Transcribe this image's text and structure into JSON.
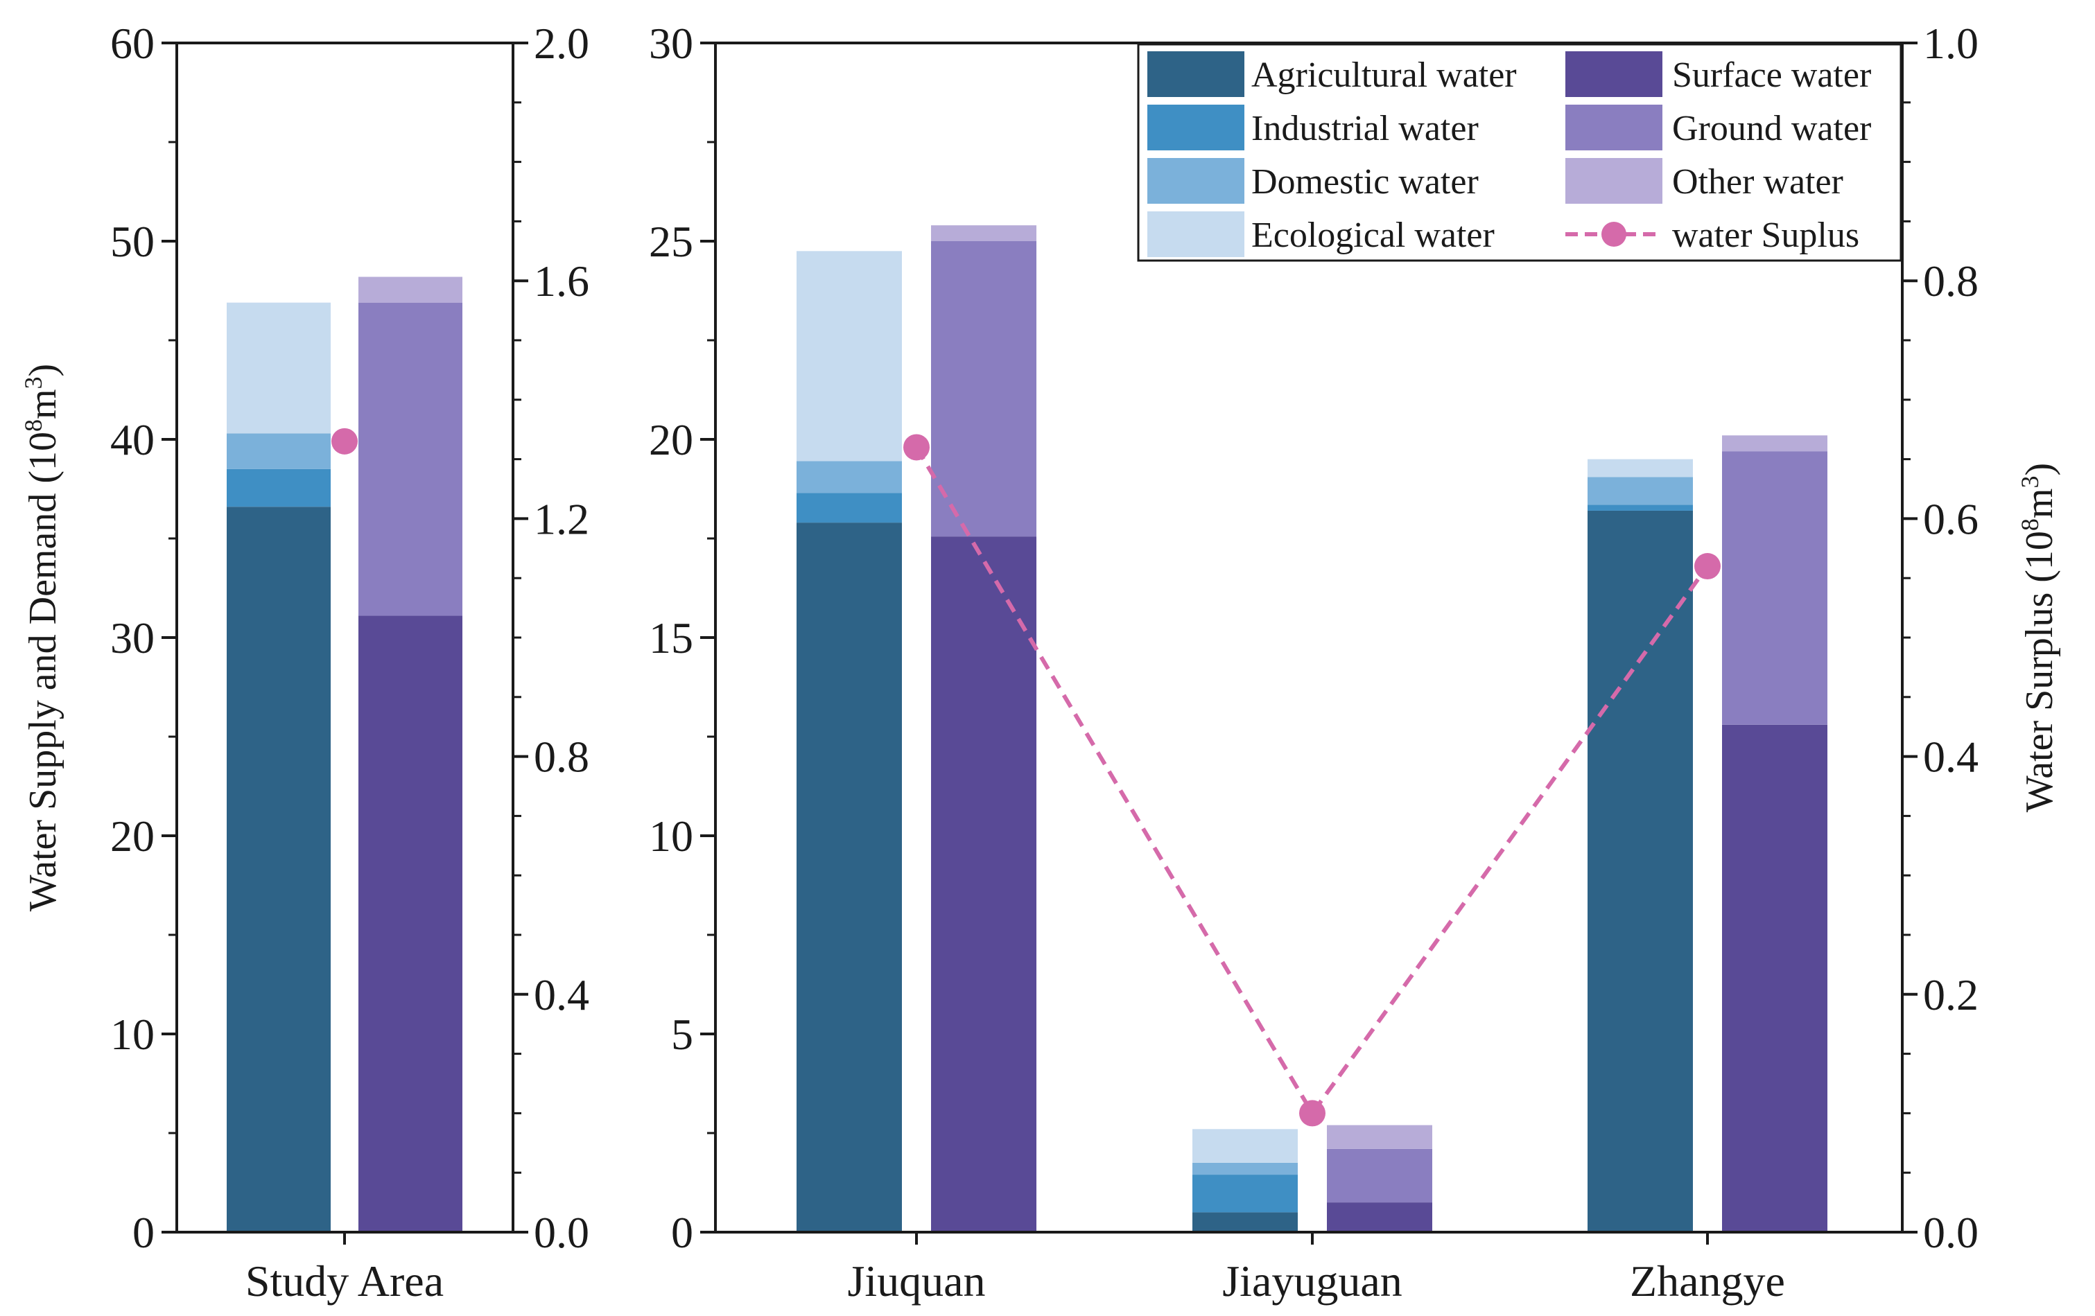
{
  "chart_data": [
    {
      "type": "bar",
      "subtype": "stacked-grouped",
      "categories": [
        "Study Area"
      ],
      "ylabel": "Water Supply and Demand (10^8m^3)",
      "y2label": "",
      "ylim": [
        0,
        60
      ],
      "y2lim": [
        0,
        2.0
      ],
      "yticks": [
        "0",
        "10",
        "20",
        "30",
        "40",
        "50",
        "60"
      ],
      "y2ticks": [
        "0.0",
        "0.4",
        "0.8",
        "1.2",
        "1.6",
        "2.0"
      ],
      "demand": {
        "agricultural": [
          36.6
        ],
        "industrial": [
          1.9
        ],
        "domestic": [
          1.8
        ],
        "ecological": [
          6.6
        ]
      },
      "supply": {
        "surface": [
          31.1
        ],
        "ground": [
          15.8
        ],
        "other": [
          1.3
        ]
      },
      "surplus": [
        1.33
      ]
    },
    {
      "type": "bar",
      "subtype": "stacked-grouped",
      "categories": [
        "Jiuquan",
        "Jiayuguan",
        "Zhangye"
      ],
      "ylabel": "",
      "y2label": "Water Surplus (10^8m^3)",
      "ylim": [
        0,
        30
      ],
      "y2lim": [
        0,
        1.0
      ],
      "yticks": [
        "0",
        "5",
        "10",
        "15",
        "20",
        "25",
        "30"
      ],
      "y2ticks": [
        "0.0",
        "0.2",
        "0.4",
        "0.6",
        "0.8",
        "1.0"
      ],
      "demand": {
        "agricultural": [
          17.9,
          0.5,
          18.2
        ],
        "industrial": [
          0.75,
          0.95,
          0.15
        ],
        "domestic": [
          0.8,
          0.3,
          0.7
        ],
        "ecological": [
          5.3,
          0.85,
          0.45
        ]
      },
      "supply": {
        "surface": [
          17.55,
          0.75,
          12.8
        ],
        "ground": [
          7.45,
          1.35,
          6.9
        ],
        "other": [
          0.4,
          0.6,
          0.4
        ]
      },
      "surplus": [
        0.66,
        0.1,
        0.56
      ]
    }
  ],
  "legend": {
    "items": [
      {
        "label": "Agricultural water",
        "color": "#2e6387"
      },
      {
        "label": "Industrial water",
        "color": "#3f8fc4"
      },
      {
        "label": "Domestic water",
        "color": "#7bb1da"
      },
      {
        "label": "Ecological water",
        "color": "#c6dbef"
      },
      {
        "label": "Surface water",
        "color": "#594a96"
      },
      {
        "label": "Ground water",
        "color": "#8a7ec0"
      },
      {
        "label": "Other water",
        "color": "#b7acd8"
      },
      {
        "label": "water Suplus",
        "color": "#d56aaa",
        "style": "dashed-line-marker"
      }
    ]
  },
  "colors": {
    "agricultural": "#2e6387",
    "industrial": "#3f8fc4",
    "domestic": "#7bb1da",
    "ecological": "#c6dbef",
    "surface": "#594a96",
    "ground": "#8a7ec0",
    "other": "#b7acd8",
    "surplus": "#d56aaa"
  }
}
